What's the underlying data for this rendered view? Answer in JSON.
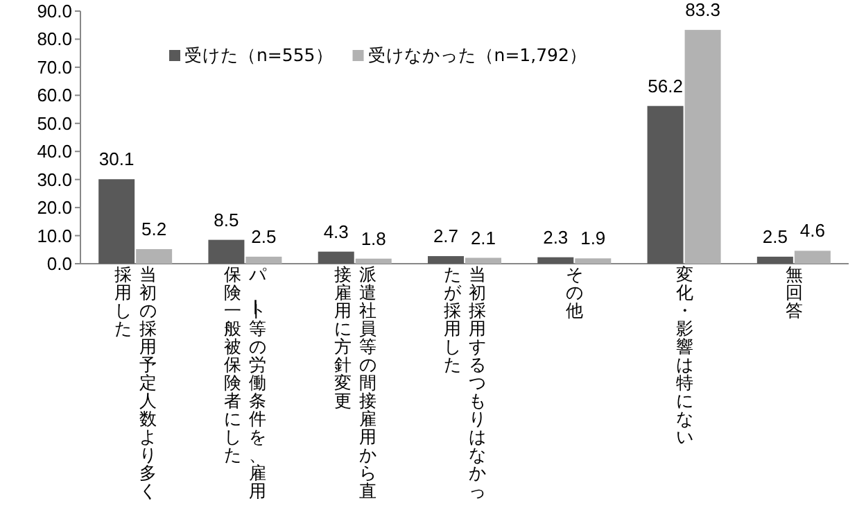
{
  "chart_data": {
    "type": "bar",
    "categories": [
      "当初の採用予定人数より多く採用した",
      "パート等の労働条件を、雇用保険一般被保険者にした",
      "派遣社員等の間接雇用から直接雇用に方針変更",
      "当初採用するつもりはなかったが採用した",
      "その他",
      "変化・影響は特にない",
      "無回答"
    ],
    "series": [
      {
        "name": "受けた（n=555）",
        "color": "#595959",
        "values": [
          30.1,
          8.5,
          4.3,
          2.7,
          2.3,
          56.2,
          2.5
        ]
      },
      {
        "name": "受けなかった（n=1,792）",
        "color": "#b2b2b2",
        "values": [
          5.2,
          2.5,
          1.8,
          2.1,
          1.9,
          83.3,
          4.6
        ]
      }
    ],
    "ylim": [
      0,
      90
    ],
    "yticks": [
      "0.0",
      "10.0",
      "20.0",
      "30.0",
      "40.0",
      "50.0",
      "60.0",
      "70.0",
      "80.0",
      "90.0"
    ],
    "data_labels": true,
    "legend": "top left",
    "grid": false
  }
}
